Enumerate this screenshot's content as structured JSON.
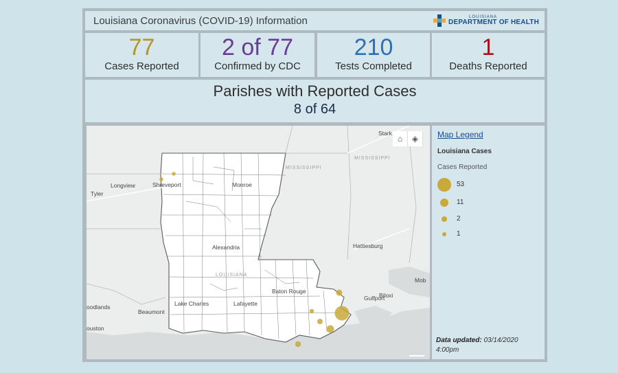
{
  "header": {
    "title": "Louisiana Coronavirus (COVID-19) Information",
    "logo_top": "LOUISIANA",
    "logo_main": "DEPARTMENT OF HEALTH"
  },
  "stats": [
    {
      "value": "77",
      "label": "Cases Reported",
      "color": "#b5952a"
    },
    {
      "value": "2 of 77",
      "label": "Confirmed by CDC",
      "color": "#6a3d94"
    },
    {
      "value": "210",
      "label": "Tests Completed",
      "color": "#2f6fb2"
    },
    {
      "value": "1",
      "label": "Deaths Reported",
      "color": "#a3151c"
    }
  ],
  "parishes": {
    "title": "Parishes with Reported Cases",
    "count": "8 of 64"
  },
  "map": {
    "buttons": {
      "home_icon": "home-icon",
      "layers_icon": "layers-icon"
    },
    "labels": {
      "stark": "Stark",
      "mississippi1": "MISSISSIPPI",
      "mississippi2": "MISSISSIPPI",
      "longview": "Longview",
      "shreveport": "Shreveport",
      "monroe": "Monroe",
      "tyler": "Tyler",
      "alexandria": "Alexandria",
      "hattiesburg": "Hattiesburg",
      "louisiana": "LOUISIANA",
      "mob": "Mob",
      "baton_rouge": "Baton Rouge",
      "biloxi": "Biloxi",
      "gulfport": "Gulfport",
      "woodlands": "oodlands",
      "lake_charles": "Lake Charles",
      "lafayette": "Lafayette",
      "beaumont": "Beaumont",
      "houston": "ouston"
    },
    "case_dot_color": "#c9a93a"
  },
  "legend": {
    "title": "Map Legend",
    "subtitle": "Louisiana Cases",
    "cases_label": "Cases Reported",
    "items": [
      {
        "value": "53"
      },
      {
        "value": "11"
      },
      {
        "value": "2"
      },
      {
        "value": "1"
      }
    ],
    "updated_label": "Data updated:",
    "updated_date": "03/14/2020",
    "updated_time": "4:00pm"
  }
}
